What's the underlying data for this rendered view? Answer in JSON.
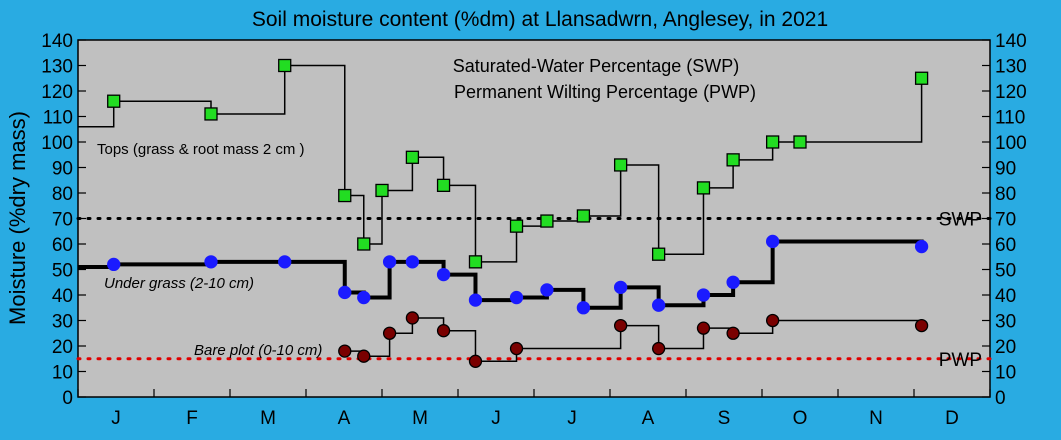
{
  "chart_data": {
    "type": "line",
    "title": "Soil moisture content (%dm)  at Llansadwrn, Anglesey, in 2021",
    "ylabel": "Moisture (%dry mass)",
    "xlabel": "",
    "ylim": [
      0,
      140
    ],
    "yticks": [
      0,
      10,
      20,
      30,
      40,
      50,
      60,
      70,
      80,
      90,
      100,
      110,
      120,
      130,
      140
    ],
    "xlim": [
      0,
      12
    ],
    "month_labels": [
      "J",
      "F",
      "M",
      "A",
      "M",
      "J",
      "J",
      "A",
      "S",
      "O",
      "N",
      "D"
    ],
    "grid": false,
    "background": "#c0c0c0",
    "legend_lines": [
      "Saturated-Water Percentage (SWP)",
      "Permanent Wilting Percentage (PWP)"
    ],
    "reference_lines": [
      {
        "name": "SWP",
        "value": 70,
        "color": "#000000",
        "style": "dotted"
      },
      {
        "name": "PWP",
        "value": 15,
        "color": "#e00000",
        "style": "dotted"
      }
    ],
    "series": [
      {
        "name": "Tops (grass & root mass 2 cm )",
        "marker": "square",
        "marker_color": "#22dd22",
        "line_width": 1.5,
        "start": [
          0.0,
          106
        ],
        "x": [
          0.47,
          1.75,
          2.72,
          3.51,
          3.76,
          4.0,
          4.4,
          4.81,
          5.23,
          5.77,
          6.17,
          6.65,
          7.14,
          7.64,
          8.23,
          8.62,
          9.14,
          9.5,
          11.1
        ],
        "y": [
          116,
          111,
          130,
          79,
          60,
          81,
          94,
          83,
          53,
          67,
          69,
          71,
          91,
          56,
          82,
          93,
          100,
          100,
          125
        ]
      },
      {
        "name": "Under grass (2-10 cm)",
        "marker": "circle",
        "marker_color": "#1a1aff",
        "line_width": 4,
        "start": [
          0.0,
          51
        ],
        "x": [
          0.47,
          1.75,
          2.72,
          3.51,
          3.76,
          4.1,
          4.4,
          4.81,
          5.23,
          5.77,
          6.17,
          6.65,
          7.14,
          7.64,
          8.23,
          8.62,
          9.14,
          11.1
        ],
        "y": [
          52,
          53,
          53,
          41,
          39,
          53,
          53,
          48,
          38,
          39,
          42,
          35,
          43,
          36,
          40,
          45,
          61,
          59
        ]
      },
      {
        "name": "Bare plot (0-10 cm)",
        "marker": "circle",
        "marker_color": "#7a0000",
        "line_width": 1.5,
        "x": [
          3.51,
          3.76,
          4.1,
          4.4,
          4.81,
          5.23,
          5.77,
          7.14,
          7.64,
          8.23,
          8.62,
          9.14,
          11.1
        ],
        "y": [
          18,
          16,
          25,
          31,
          26,
          14,
          19,
          28,
          19,
          27,
          25,
          30,
          28
        ]
      }
    ]
  }
}
